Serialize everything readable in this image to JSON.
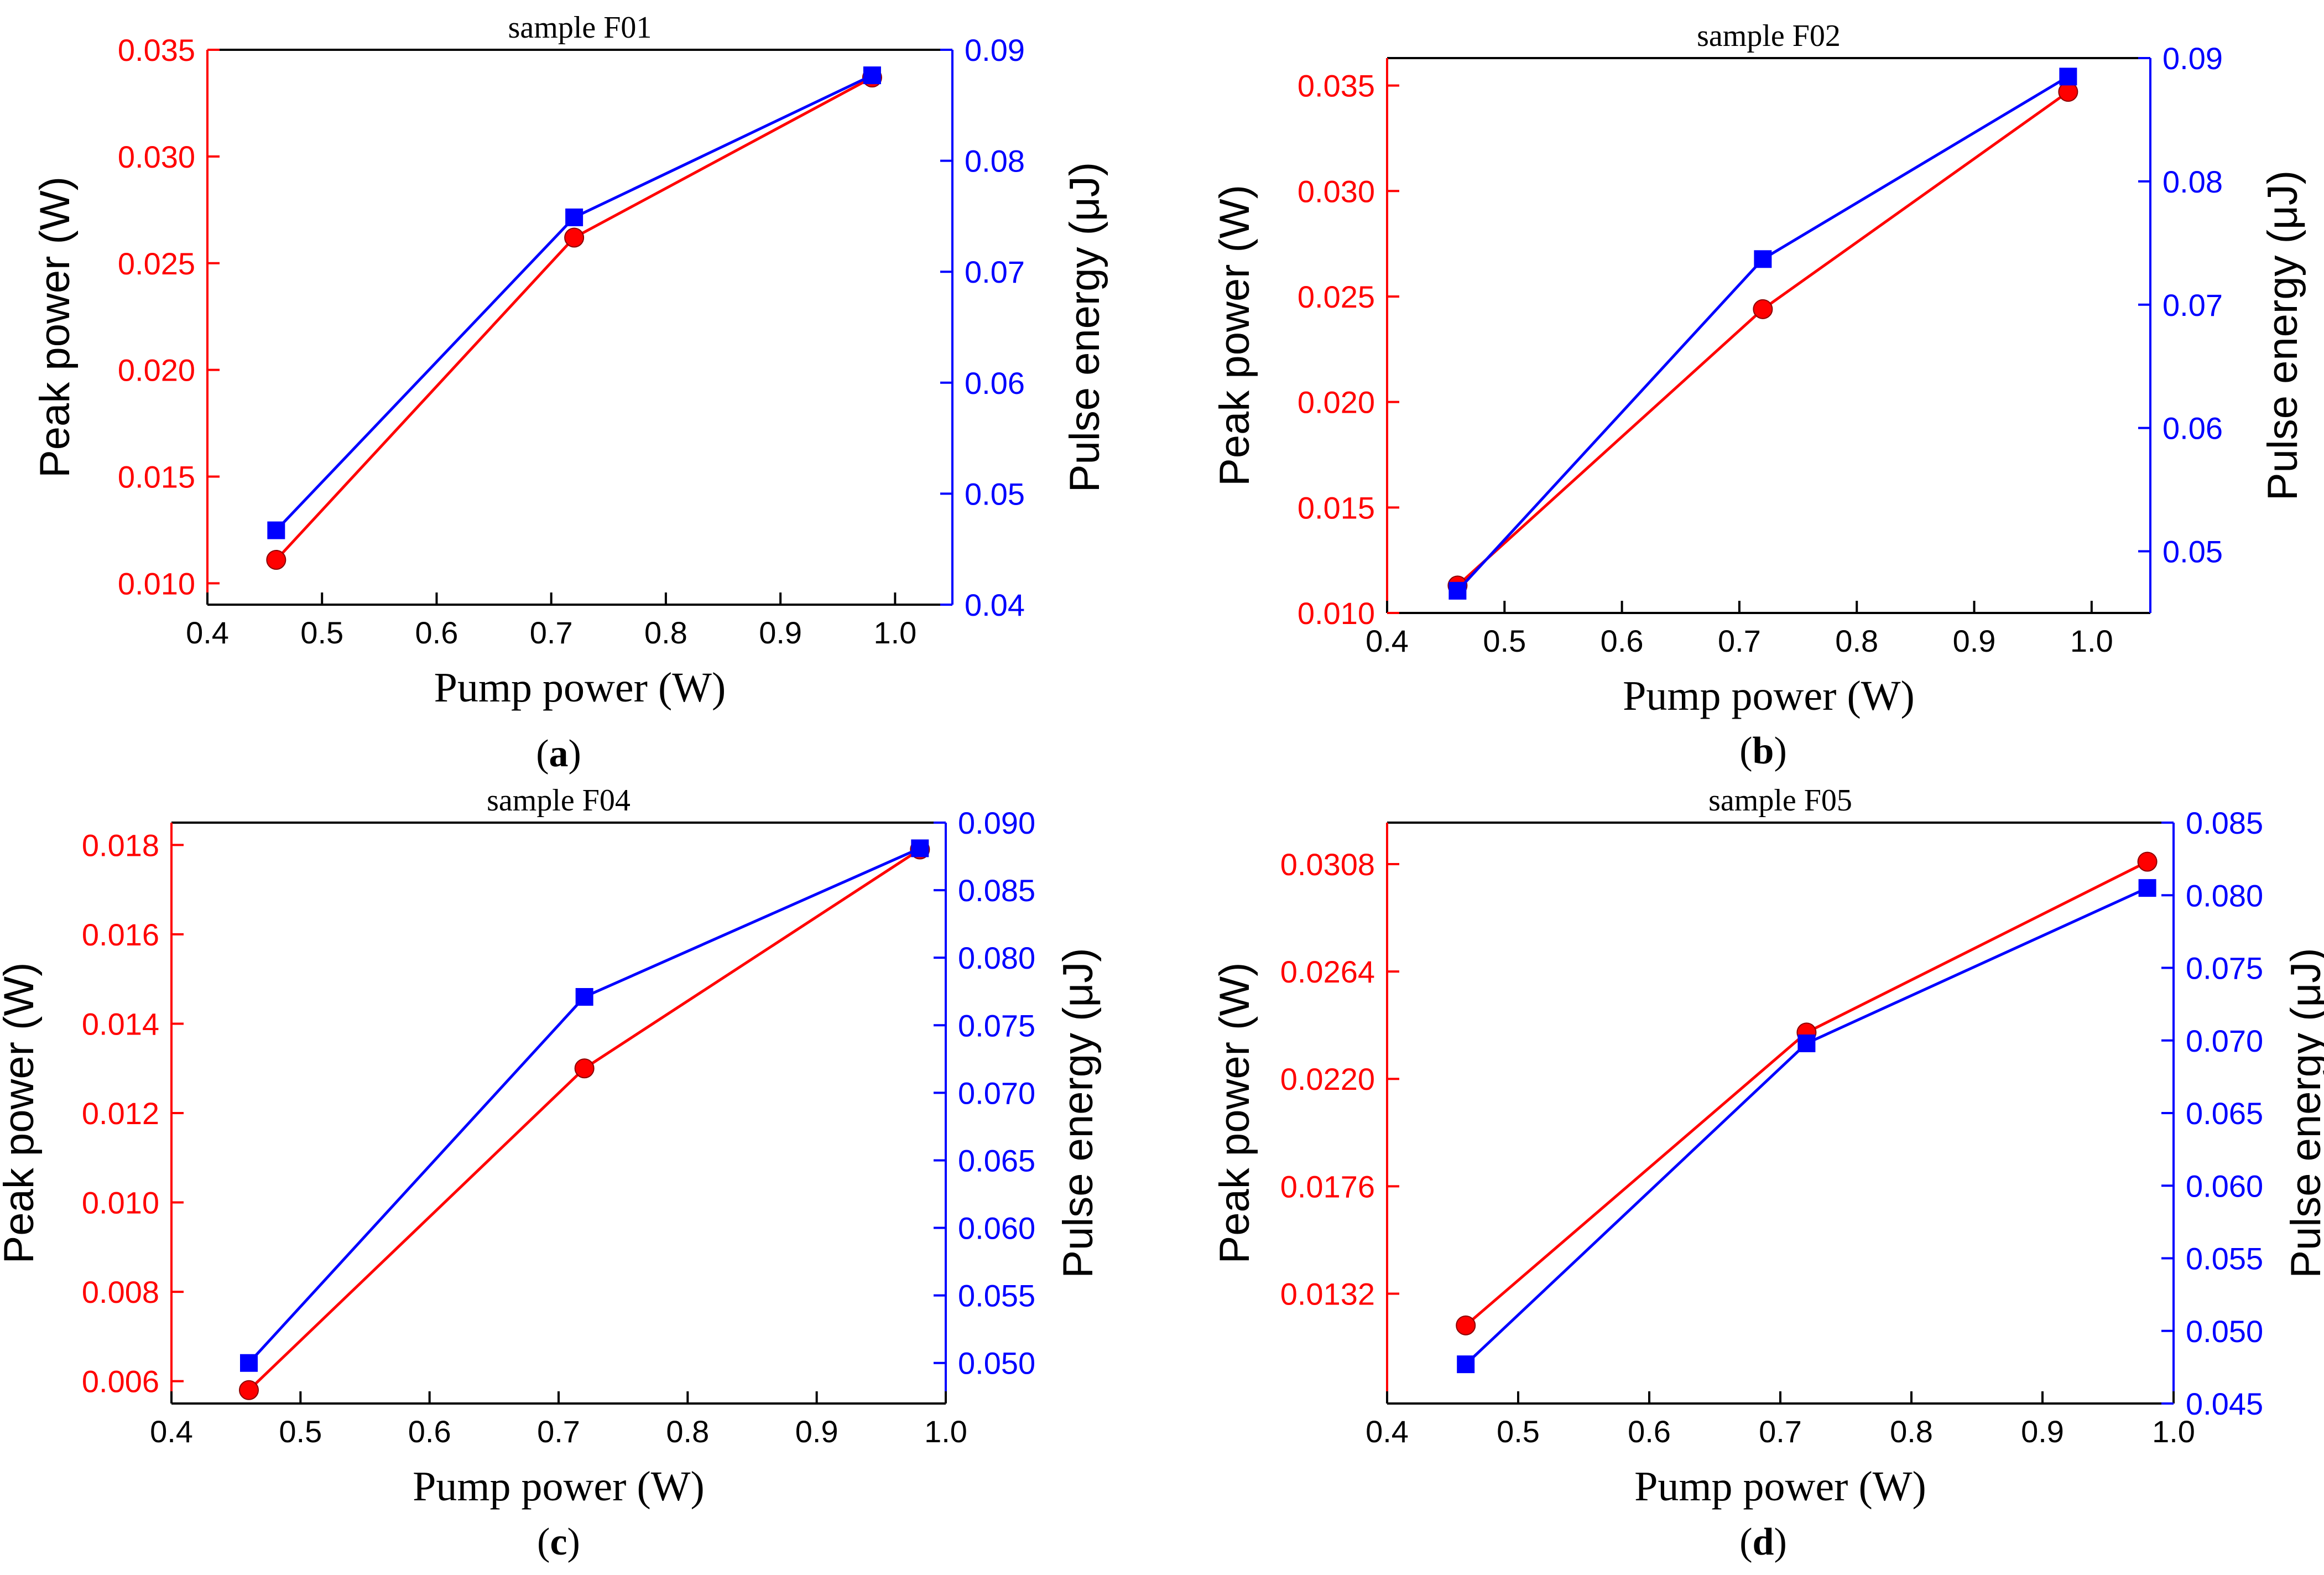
{
  "figure": {
    "colors": {
      "left_axis": "#ff0000",
      "right_axis": "#0000ff",
      "frame": "#000000"
    },
    "panels": [
      {
        "label_open": "(",
        "label_letter": "a",
        "label_close": ")"
      },
      {
        "label_open": "(",
        "label_letter": "b",
        "label_close": ")"
      },
      {
        "label_open": "(",
        "label_letter": "c",
        "label_close": ")"
      },
      {
        "label_open": "(",
        "label_letter": "d",
        "label_close": ")"
      }
    ]
  },
  "chart_data": [
    {
      "type": "line",
      "title": "sample F01",
      "xlabel": "Pump power (W)",
      "ylabel_left": "Peak power (W)",
      "ylabel_right": "Pulse energy (μJ)",
      "xlim": [
        0.4,
        1.05
      ],
      "xticks": [
        "0.4",
        "0.5",
        "0.6",
        "0.7",
        "0.8",
        "0.9",
        "1.0"
      ],
      "ylim_left": [
        0.009,
        0.035
      ],
      "yticks_left": [
        "0.010",
        "0.015",
        "0.020",
        "0.025",
        "0.030",
        "0.035"
      ],
      "ylim_right": [
        0.04,
        0.09
      ],
      "yticks_right": [
        "0.04",
        "0.05",
        "0.06",
        "0.07",
        "0.08",
        "0.09"
      ],
      "series": [
        {
          "name": "Peak power",
          "axis": "left",
          "marker": "circle",
          "color": "#ff0000",
          "x": [
            0.46,
            0.72,
            0.98
          ],
          "y": [
            0.0111,
            0.0262,
            0.0337
          ]
        },
        {
          "name": "Pulse energy",
          "axis": "right",
          "marker": "square",
          "color": "#0000ff",
          "x": [
            0.46,
            0.72,
            0.98
          ],
          "y": [
            0.0467,
            0.0749,
            0.0877
          ]
        }
      ]
    },
    {
      "type": "line",
      "title": "sample F02",
      "xlabel": "Pump power (W)",
      "ylabel_left": "Peak power (W)",
      "ylabel_right": "Pulse energy (μJ)",
      "xlim": [
        0.4,
        1.05
      ],
      "xticks": [
        "0.4",
        "0.5",
        "0.6",
        "0.7",
        "0.8",
        "0.9",
        "1.0"
      ],
      "ylim_left": [
        0.01,
        0.0363
      ],
      "yticks_left": [
        "0.010",
        "0.015",
        "0.020",
        "0.025",
        "0.030",
        "0.035"
      ],
      "ylim_right": [
        0.045,
        0.09
      ],
      "yticks_right": [
        "0.05",
        "0.06",
        "0.07",
        "0.08",
        "0.09"
      ],
      "series": [
        {
          "name": "Peak power",
          "axis": "left",
          "marker": "circle",
          "color": "#ff0000",
          "x": [
            0.46,
            0.72,
            0.98
          ],
          "y": [
            0.0113,
            0.0244,
            0.0347
          ]
        },
        {
          "name": "Pulse energy",
          "axis": "right",
          "marker": "square",
          "color": "#0000ff",
          "x": [
            0.46,
            0.72,
            0.98
          ],
          "y": [
            0.0468,
            0.0737,
            0.0885
          ]
        }
      ]
    },
    {
      "type": "line",
      "title": "sample F04",
      "xlabel": "Pump power (W)",
      "ylabel_left": "Peak power (W)",
      "ylabel_right": "Pulse energy (μJ)",
      "xlim": [
        0.4,
        1.0
      ],
      "xticks": [
        "0.4",
        "0.5",
        "0.6",
        "0.7",
        "0.8",
        "0.9",
        "1.0"
      ],
      "ylim_left": [
        0.0055,
        0.0185
      ],
      "yticks_left": [
        "0.006",
        "0.008",
        "0.010",
        "0.012",
        "0.014",
        "0.016",
        "0.018"
      ],
      "ylim_right": [
        0.047,
        0.09
      ],
      "yticks_right": [
        "0.050",
        "0.055",
        "0.060",
        "0.065",
        "0.070",
        "0.075",
        "0.080",
        "0.085",
        "0.090"
      ],
      "series": [
        {
          "name": "Peak power",
          "axis": "left",
          "marker": "circle",
          "color": "#ff0000",
          "x": [
            0.46,
            0.72,
            0.98
          ],
          "y": [
            0.0058,
            0.013,
            0.0179
          ]
        },
        {
          "name": "Pulse energy",
          "axis": "right",
          "marker": "square",
          "color": "#0000ff",
          "x": [
            0.46,
            0.72,
            0.98
          ],
          "y": [
            0.05,
            0.0771,
            0.0881
          ]
        }
      ]
    },
    {
      "type": "line",
      "title": "sample F05",
      "xlabel": "Pump power (W)",
      "ylabel_left": "Peak power (W)",
      "ylabel_right": "Pulse energy (μJ)",
      "xlim": [
        0.4,
        1.0
      ],
      "xticks": [
        "0.4",
        "0.5",
        "0.6",
        "0.7",
        "0.8",
        "0.9",
        "1.0"
      ],
      "ylim_left": [
        0.0087,
        0.0325
      ],
      "yticks_left": [
        "0.0132",
        "0.0176",
        "0.0220",
        "0.0264",
        "0.0308"
      ],
      "ylim_right": [
        0.045,
        0.085
      ],
      "yticks_right": [
        "0.045",
        "0.050",
        "0.055",
        "0.060",
        "0.065",
        "0.070",
        "0.075",
        "0.080",
        "0.085"
      ],
      "series": [
        {
          "name": "Peak power",
          "axis": "left",
          "marker": "circle",
          "color": "#ff0000",
          "x": [
            0.46,
            0.72,
            0.98
          ],
          "y": [
            0.0119,
            0.0239,
            0.0309
          ]
        },
        {
          "name": "Pulse energy",
          "axis": "right",
          "marker": "square",
          "color": "#0000ff",
          "x": [
            0.46,
            0.72,
            0.98
          ],
          "y": [
            0.0477,
            0.0698,
            0.0805
          ]
        }
      ]
    }
  ]
}
